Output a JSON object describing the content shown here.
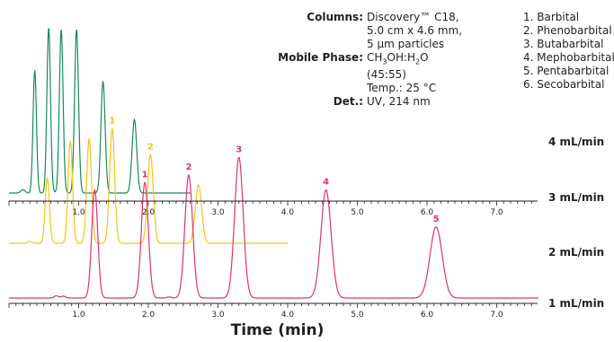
{
  "conditions": {
    "columns_label": "Columns:",
    "columns_lines": [
      "Discovery™ C18,",
      "5.0 cm x 4.6 mm,",
      "5 µm particles"
    ],
    "mobile_phase_label": "Mobile Phase:",
    "mobile_phase_lines": [
      "CH3OH:H2O",
      "(45:55)",
      "Temp.: 25 °C"
    ],
    "det_label": "Det.:",
    "det_value": "UV, 214 nm"
  },
  "compounds": [
    "1. Barbital",
    "2. Phenobarbital",
    "3. Butabarbital",
    "4. Mephobarbital",
    "5. Pentabarbital",
    "6. Secobarbital"
  ],
  "colors": {
    "4": "#1a8a5a",
    "3": "#f5c518",
    "1": "#e0307a",
    "text": "#231f20"
  },
  "chart_data": {
    "type": "line",
    "xlabel": "Time (min)",
    "xlim": [
      0,
      7.6
    ],
    "x_ticks": [
      "1.0",
      "2.0",
      "3.0",
      "4.0",
      "5.0",
      "6.0",
      "7.0"
    ],
    "axis_tick_labels_shown_for": [
      "3 mL/min",
      "1 mL/min"
    ],
    "series": [
      {
        "name": "4 mL/min",
        "color_key": "4",
        "x_end": 2.6,
        "baseline_features": [
          [
            0.2,
            0.08
          ],
          [
            0.6,
            0.06
          ]
        ],
        "peaks": [
          {
            "t": 0.37,
            "h": 0.75
          },
          {
            "t": 0.57,
            "h": 1.0
          },
          {
            "t": 0.75,
            "h": 1.0
          },
          {
            "t": 0.97,
            "h": 1.0
          },
          {
            "t": 1.35,
            "h": 0.68
          },
          {
            "t": 1.8,
            "h": 0.45
          }
        ]
      },
      {
        "name": "3 mL/min",
        "color_key": "3",
        "x_end": 4.0,
        "baseline_features": [
          [
            0.3,
            0.06
          ]
        ],
        "peaks": [
          {
            "t": 0.55,
            "h": 0.5,
            "label": ""
          },
          {
            "t": 0.88,
            "h": 0.78,
            "label": ""
          },
          {
            "t": 1.15,
            "h": 0.8,
            "label": ""
          },
          {
            "t": 1.48,
            "h": 0.88,
            "label": "1"
          },
          {
            "t": 2.03,
            "h": 0.68,
            "label": "2"
          },
          {
            "t": 2.72,
            "h": 0.45,
            "label": ""
          }
        ]
      },
      {
        "name": "2 mL/min",
        "color_key": "1",
        "x_end": 7.6,
        "baseline_features": [
          [
            0.68,
            0.06
          ],
          [
            0.78,
            0.05
          ],
          [
            2.3,
            0.03
          ]
        ],
        "peaks": [
          {
            "t": 1.23,
            "h": 0.73,
            "label": ""
          },
          {
            "t": 1.95,
            "h": 0.78,
            "label": "1"
          },
          {
            "t": 2.58,
            "h": 0.83,
            "label": "2"
          },
          {
            "t": 3.3,
            "h": 0.95,
            "label": "3"
          },
          {
            "t": 4.55,
            "h": 0.73,
            "label": "4"
          },
          {
            "t": 6.13,
            "h": 0.48,
            "label": "5"
          }
        ]
      },
      {
        "name": "1 mL/min",
        "color_key": "1",
        "x_end": 7.6,
        "peaks": []
      }
    ]
  }
}
